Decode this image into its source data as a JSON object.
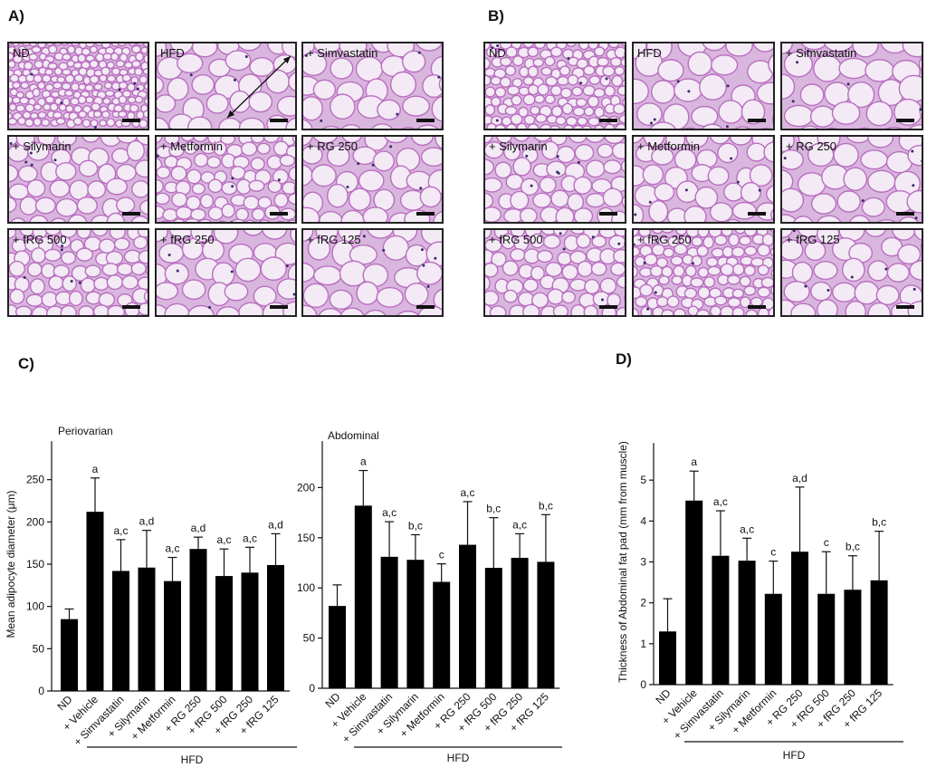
{
  "panels": {
    "A": {
      "letter": "A)"
    },
    "B": {
      "letter": "B)"
    },
    "C": {
      "letter": "C)"
    },
    "D": {
      "letter": "D)"
    }
  },
  "micrographs": {
    "A": [
      "ND",
      "HFD",
      "+ Simvastatin",
      "+ Silymarin",
      "+ Metformin",
      "+ RG 250",
      "+ fRG 500",
      "+ fRG 250",
      "+ fRG 125"
    ],
    "B": [
      "ND",
      "HFD",
      "+ Simvastatin",
      "+ Silymarin",
      "+ Metformin",
      "+ RG 250",
      "+ fRG 500",
      "+ fRG 250",
      "+ fRG 125"
    ]
  },
  "colors": {
    "bar": "#000000",
    "stain": "#b660b8",
    "background": "#ecdff0"
  },
  "chart_data": [
    {
      "type": "bar",
      "title": "Periovarian",
      "ylabel": "Mean adipocyte diameter (μm)",
      "ylim": [
        0,
        300
      ],
      "yticks": [
        0,
        50,
        100,
        150,
        200,
        250
      ],
      "categories": [
        "ND",
        "+ Vehicle",
        "+ Simvastatin",
        "+ Silymarin",
        "+ Metformin",
        "+ RG 250",
        "+ fRG 500",
        "+ fRG 250",
        "+ fRG 125"
      ],
      "values": [
        85,
        212,
        142,
        146,
        130,
        168,
        136,
        140,
        149
      ],
      "errors": [
        12,
        40,
        37,
        44,
        28,
        14,
        32,
        30,
        37
      ],
      "significance": [
        "",
        "a",
        "a,c",
        "a,d",
        "a,c",
        "a,d",
        "a,c",
        "a,c",
        "a,d"
      ],
      "group_label": "HFD"
    },
    {
      "type": "bar",
      "title": "Abdominal",
      "ylabel": "",
      "ylim": [
        0,
        250
      ],
      "yticks": [
        0,
        50,
        100,
        150,
        200
      ],
      "categories": [
        "ND",
        "+ Vehicle",
        "+ Simvastatin",
        "+ Silymarin",
        "+ Metformin",
        "+ RG 250",
        "+ fRG 500",
        "+ fRG 250",
        "+ fRG 125"
      ],
      "values": [
        82,
        182,
        131,
        128,
        106,
        143,
        120,
        130,
        126
      ],
      "errors": [
        21,
        35,
        35,
        25,
        18,
        43,
        50,
        24,
        47
      ],
      "significance": [
        "",
        "a",
        "a,c",
        "b,c",
        "c",
        "a,c",
        "b,c",
        "a,c",
        "b,c"
      ],
      "group_label": "HFD"
    },
    {
      "type": "bar",
      "title": "",
      "ylabel": "Thickness of Abdominal fat pad (mm from muscle)",
      "ylim": [
        0,
        6
      ],
      "yticks": [
        0,
        1,
        2,
        3,
        4,
        5
      ],
      "categories": [
        "ND",
        "+ Vehicle",
        "+ Simvastatin",
        "+ Silymarin",
        "+ Metformin",
        "+ RG 250",
        "+ fRG 500",
        "+ fRG 250",
        "+ fRG 125"
      ],
      "values": [
        1.3,
        4.5,
        3.15,
        3.03,
        2.22,
        3.25,
        2.22,
        2.32,
        2.55
      ],
      "errors": [
        0.8,
        0.72,
        1.1,
        0.55,
        0.8,
        1.58,
        1.03,
        0.83,
        1.2
      ],
      "significance": [
        "",
        "a",
        "a,c",
        "a,c",
        "c",
        "a,d",
        "c",
        "b,c",
        "b,c"
      ],
      "group_label": "HFD"
    }
  ]
}
